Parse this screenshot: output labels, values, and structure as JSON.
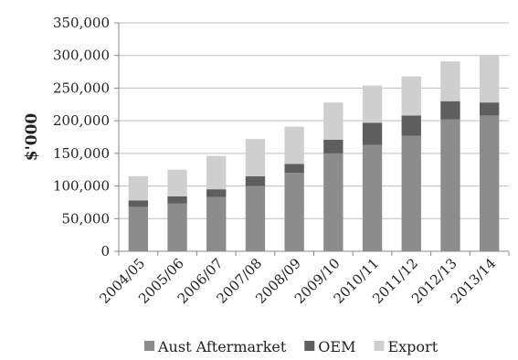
{
  "chart_data": {
    "type": "bar",
    "stacked": true,
    "title": "",
    "xlabel": "",
    "ylabel": "$'000",
    "ylim": [
      0,
      350000
    ],
    "yticks": [
      0,
      50000,
      100000,
      150000,
      200000,
      250000,
      300000,
      350000
    ],
    "ytick_labels": [
      "0",
      "50,000",
      "100,000",
      "150,000",
      "200,000",
      "250,000",
      "300,000",
      "350,000"
    ],
    "grid": "horizontal",
    "legend_position": "bottom",
    "categories": [
      "2004/05",
      "2005/06",
      "2006/07",
      "2007/08",
      "2008/09",
      "2009/10",
      "2010/11",
      "2011/12",
      "2012/13",
      "2013/14"
    ],
    "series": [
      {
        "name": "Aust Aftermarket",
        "color": "#8c8c8c",
        "values": [
          68000,
          73000,
          83000,
          100000,
          120000,
          150000,
          163000,
          177000,
          202000,
          208000
        ]
      },
      {
        "name": "OEM",
        "color": "#5e5e5e",
        "values": [
          10000,
          11000,
          12000,
          15000,
          14000,
          21000,
          34000,
          31000,
          28000,
          20000
        ]
      },
      {
        "name": "Export",
        "color": "#cfcfcf",
        "values": [
          37000,
          41000,
          51000,
          57000,
          57000,
          57000,
          57000,
          60000,
          61000,
          72000
        ]
      }
    ]
  }
}
